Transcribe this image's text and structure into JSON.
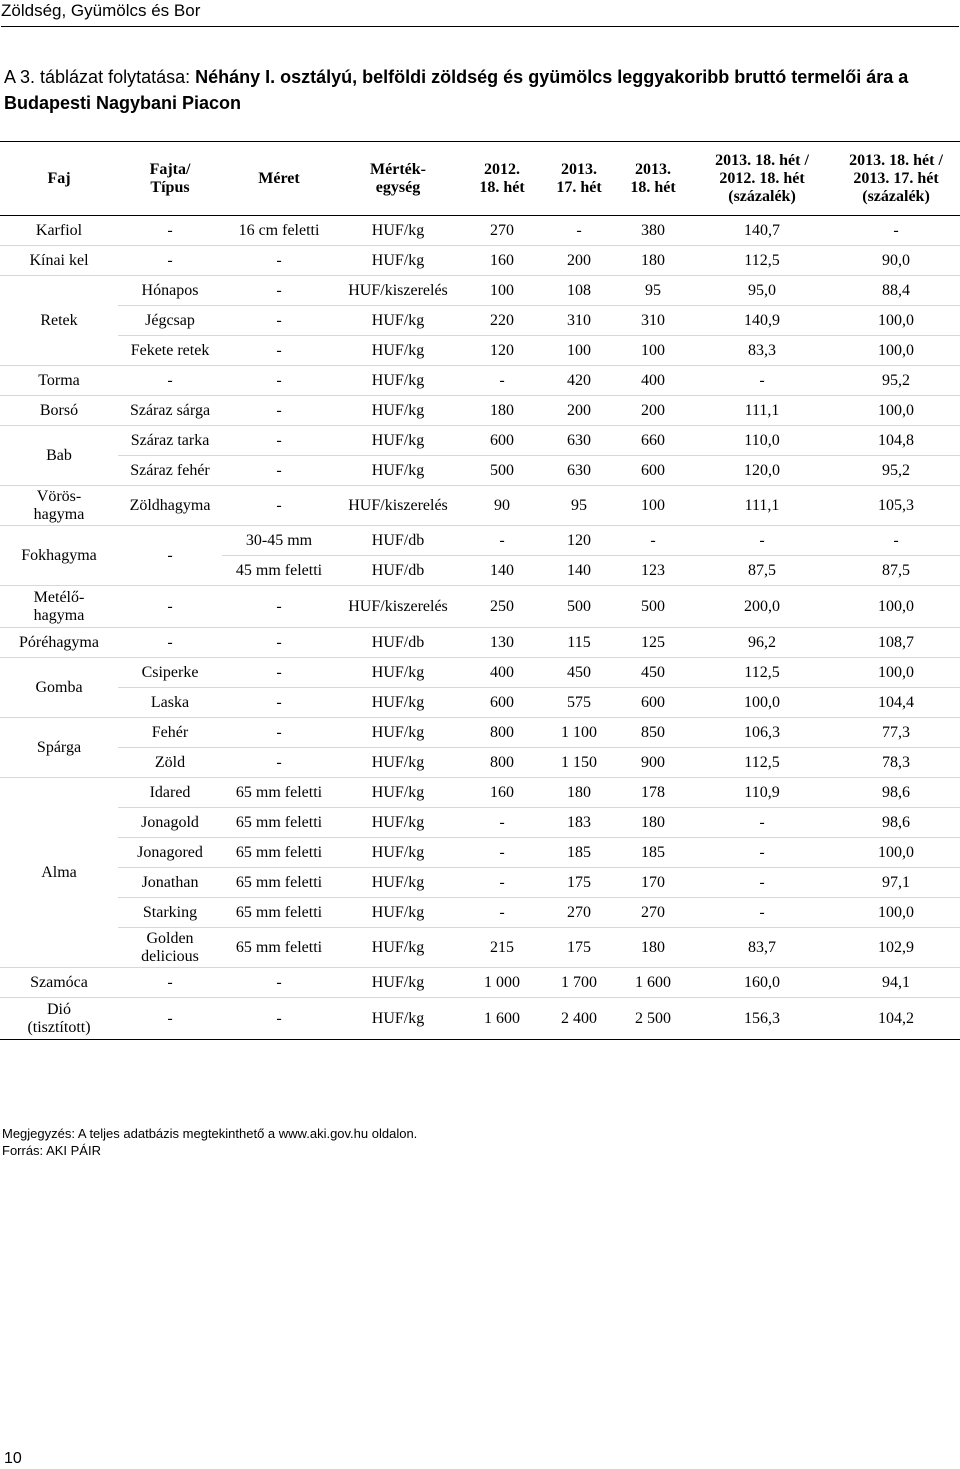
{
  "header": {
    "running_title": "Zöldség, Gyümölcs és Bor"
  },
  "caption": {
    "prefix": "A 3. táblázat folytatása: ",
    "title": "Néhány I. osztályú, belföldi zöldség és gyümölcs leggyakoribb bruttó termelői ára a Budapesti Nagybani Piacon"
  },
  "table": {
    "headers": {
      "faj": "Faj",
      "fajta_1": "Fajta/",
      "fajta_2": "Típus",
      "meret": "Méret",
      "me_1": "Mérték-",
      "me_2": "egység",
      "c1_1": "2012.",
      "c1_2": "18. hét",
      "c2_1": "2013.",
      "c2_2": "17. hét",
      "c3_1": "2013.",
      "c3_2": "18. hét",
      "c4_1": "2013. 18. hét /",
      "c4_2": "2012. 18. hét",
      "c4_3": "(százalék)",
      "c5_1": "2013. 18. hét /",
      "c5_2": "2013. 17. hét",
      "c5_3": "(százalék)"
    },
    "rows": [
      {
        "faj": "Karfiol",
        "fajta": "-",
        "meret": "16 cm feletti",
        "unit": "HUF/kg",
        "v1": "270",
        "v2": "-",
        "v3": "380",
        "p1": "140,7",
        "p2": "-"
      },
      {
        "faj": "Kínai kel",
        "fajta": "-",
        "meret": "-",
        "unit": "HUF/kg",
        "v1": "160",
        "v2": "200",
        "v3": "180",
        "p1": "112,5",
        "p2": "90,0"
      },
      {
        "faj": "Retek",
        "fajta": "Hónapos",
        "meret": "-",
        "unit": "HUF/kiszerelés",
        "v1": "100",
        "v2": "108",
        "v3": "95",
        "p1": "95,0",
        "p2": "88,4"
      },
      {
        "fajta": "Jégcsap",
        "meret": "-",
        "unit": "HUF/kg",
        "v1": "220",
        "v2": "310",
        "v3": "310",
        "p1": "140,9",
        "p2": "100,0"
      },
      {
        "fajta": "Fekete retek",
        "meret": "-",
        "unit": "HUF/kg",
        "v1": "120",
        "v2": "100",
        "v3": "100",
        "p1": "83,3",
        "p2": "100,0"
      },
      {
        "faj": "Torma",
        "fajta": "-",
        "meret": "-",
        "unit": "HUF/kg",
        "v1": "-",
        "v2": "420",
        "v3": "400",
        "p1": "-",
        "p2": "95,2"
      },
      {
        "faj": "Borsó",
        "fajta": "Száraz sárga",
        "meret": "-",
        "unit": "HUF/kg",
        "v1": "180",
        "v2": "200",
        "v3": "200",
        "p1": "111,1",
        "p2": "100,0"
      },
      {
        "faj": "Bab",
        "fajta": "Száraz tarka",
        "meret": "-",
        "unit": "HUF/kg",
        "v1": "600",
        "v2": "630",
        "v3": "660",
        "p1": "110,0",
        "p2": "104,8"
      },
      {
        "fajta": "Száraz fehér",
        "meret": "-",
        "unit": "HUF/kg",
        "v1": "500",
        "v2": "630",
        "v3": "600",
        "p1": "120,0",
        "p2": "95,2"
      },
      {
        "faj_1": "Vörös-",
        "faj_2": "hagyma",
        "fajta": "Zöldhagyma",
        "meret": "-",
        "unit": "HUF/kiszerelés",
        "v1": "90",
        "v2": "95",
        "v3": "100",
        "p1": "111,1",
        "p2": "105,3"
      },
      {
        "faj": "Fokhagyma",
        "fajta": "-",
        "meret": "30-45 mm",
        "unit": "HUF/db",
        "v1": "-",
        "v2": "120",
        "v3": "-",
        "p1": "-",
        "p2": "-"
      },
      {
        "meret": "45 mm feletti",
        "unit": "HUF/db",
        "v1": "140",
        "v2": "140",
        "v3": "123",
        "p1": "87,5",
        "p2": "87,5"
      },
      {
        "faj_1": "Metélő-",
        "faj_2": "hagyma",
        "fajta": "-",
        "meret": "-",
        "unit": "HUF/kiszerelés",
        "v1": "250",
        "v2": "500",
        "v3": "500",
        "p1": "200,0",
        "p2": "100,0"
      },
      {
        "faj": "Póréhagyma",
        "fajta": "-",
        "meret": "-",
        "unit": "HUF/db",
        "v1": "130",
        "v2": "115",
        "v3": "125",
        "p1": "96,2",
        "p2": "108,7"
      },
      {
        "faj": "Gomba",
        "fajta": "Csiperke",
        "meret": "-",
        "unit": "HUF/kg",
        "v1": "400",
        "v2": "450",
        "v3": "450",
        "p1": "112,5",
        "p2": "100,0"
      },
      {
        "fajta": "Laska",
        "meret": "-",
        "unit": "HUF/kg",
        "v1": "600",
        "v2": "575",
        "v3": "600",
        "p1": "100,0",
        "p2": "104,4"
      },
      {
        "faj": "Spárga",
        "fajta": "Fehér",
        "meret": "-",
        "unit": "HUF/kg",
        "v1": "800",
        "v2": "1 100",
        "v3": "850",
        "p1": "106,3",
        "p2": "77,3"
      },
      {
        "fajta": "Zöld",
        "meret": "-",
        "unit": "HUF/kg",
        "v1": "800",
        "v2": "1 150",
        "v3": "900",
        "p1": "112,5",
        "p2": "78,3"
      },
      {
        "faj": "Alma",
        "fajta": "Idared",
        "meret": "65 mm feletti",
        "unit": "HUF/kg",
        "v1": "160",
        "v2": "180",
        "v3": "178",
        "p1": "110,9",
        "p2": "98,6"
      },
      {
        "fajta": "Jonagold",
        "meret": "65 mm feletti",
        "unit": "HUF/kg",
        "v1": "-",
        "v2": "183",
        "v3": "180",
        "p1": "-",
        "p2": "98,6"
      },
      {
        "fajta": "Jonagored",
        "meret": "65 mm feletti",
        "unit": "HUF/kg",
        "v1": "-",
        "v2": "185",
        "v3": "185",
        "p1": "-",
        "p2": "100,0"
      },
      {
        "fajta": "Jonathan",
        "meret": "65 mm feletti",
        "unit": "HUF/kg",
        "v1": "-",
        "v2": "175",
        "v3": "170",
        "p1": "-",
        "p2": "97,1"
      },
      {
        "fajta": "Starking",
        "meret": "65 mm feletti",
        "unit": "HUF/kg",
        "v1": "-",
        "v2": "270",
        "v3": "270",
        "p1": "-",
        "p2": "100,0"
      },
      {
        "fajta_1": "Golden",
        "fajta_2": "delicious",
        "meret": "65 mm feletti",
        "unit": "HUF/kg",
        "v1": "215",
        "v2": "175",
        "v3": "180",
        "p1": "83,7",
        "p2": "102,9"
      },
      {
        "faj": "Szamóca",
        "fajta": "-",
        "meret": "-",
        "unit": "HUF/kg",
        "v1": "1 000",
        "v2": "1 700",
        "v3": "1 600",
        "p1": "160,0",
        "p2": "94,1"
      },
      {
        "faj_1": "Dió",
        "faj_2": "(tisztított)",
        "fajta": "-",
        "meret": "-",
        "unit": "HUF/kg",
        "v1": "1 600",
        "v2": "2 400",
        "v3": "2 500",
        "p1": "156,3",
        "p2": "104,2"
      }
    ]
  },
  "footnotes": {
    "note": "Megjegyzés: A teljes adatbázis megtekinthető a www.aki.gov.hu oldalon.",
    "source": "Forrás: AKI PÁIR"
  },
  "page_number": "10"
}
